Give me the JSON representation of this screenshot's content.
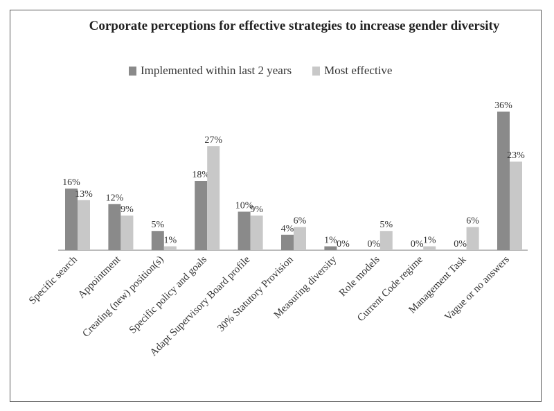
{
  "chart_data": {
    "type": "bar",
    "title": "Corporate perceptions for effective strategies to increase gender diversity",
    "categories": [
      "Specific search",
      "Appointment",
      "Creating (new) position(s)",
      "Specific policy and goals",
      "Adapt Supervisory Board profile",
      "30% Statutory Provision",
      "Measuring diversity",
      "Role models",
      "Current Code regime",
      "Management Task",
      "Vague or no answers"
    ],
    "series": [
      {
        "name": "Implemented within last 2 years",
        "color": "#8a8a8a",
        "values": [
          16,
          12,
          5,
          18,
          10,
          4,
          1,
          0,
          0,
          0,
          36
        ],
        "labels": [
          "16%",
          "12%",
          "5%",
          "18%",
          "10%",
          "4%",
          "1%",
          "0%",
          "0%",
          "0%",
          "36%"
        ]
      },
      {
        "name": "Most effective",
        "color": "#c8c8c8",
        "values": [
          13,
          9,
          1,
          27,
          9,
          6,
          0,
          5,
          1,
          6,
          23
        ],
        "labels": [
          "13%",
          "9%",
          "1%",
          "27%",
          "9%",
          "6%",
          "0%",
          "5%",
          "1%",
          "6%",
          "23%"
        ]
      }
    ],
    "ylim": [
      0,
      36
    ],
    "grid": false,
    "legend_position": "top"
  }
}
